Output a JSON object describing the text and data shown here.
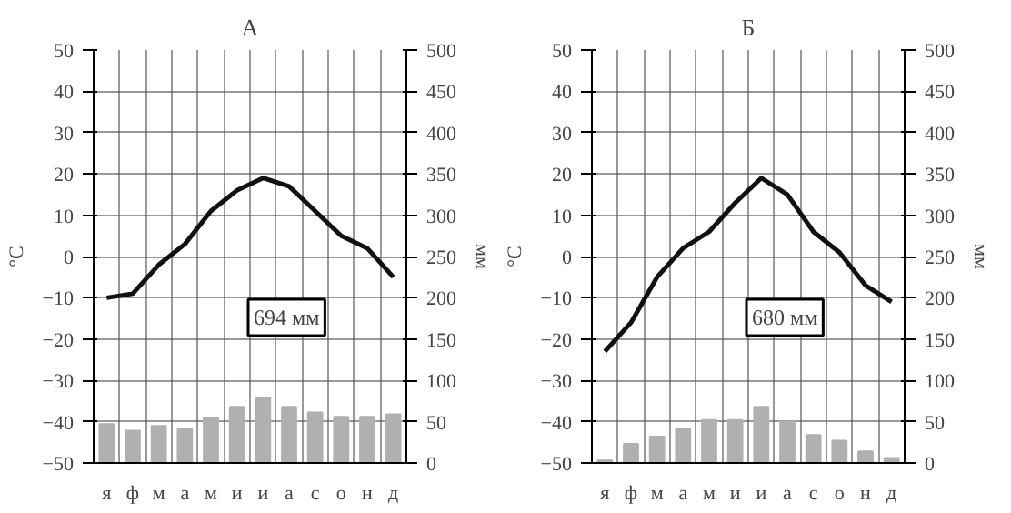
{
  "chart_data": [
    {
      "type": "bar",
      "title": "А",
      "ylabel": "°C",
      "y2label": "мм",
      "categories": [
        "я",
        "ф",
        "м",
        "а",
        "м",
        "и",
        "и",
        "а",
        "с",
        "о",
        "н",
        "д"
      ],
      "series": [
        {
          "axis": "y2",
          "color": "#b0b0b0",
          "values": [
            47,
            39,
            45,
            41,
            55,
            68,
            79,
            68,
            61,
            56,
            56,
            59
          ]
        },
        {
          "type": "line",
          "color": "#111111",
          "values": [
            -10,
            -9,
            -2,
            3,
            11,
            16,
            19,
            17,
            11,
            5,
            2,
            -5
          ]
        }
      ],
      "annotations": [
        "694 мм"
      ],
      "ylim": [
        -50,
        50
      ],
      "yticks": [
        -50,
        -40,
        -30,
        -20,
        -10,
        0,
        10,
        20,
        30,
        40,
        50
      ],
      "y2lim": [
        0,
        500
      ],
      "y2ticks": [
        0,
        50,
        100,
        150,
        200,
        250,
        300,
        350,
        400,
        450,
        500
      ],
      "grid": true
    },
    {
      "type": "bar",
      "title": "Б",
      "ylabel": "°C",
      "y2label": "мм",
      "categories": [
        "я",
        "ф",
        "м",
        "а",
        "м",
        "и",
        "и",
        "а",
        "с",
        "о",
        "н",
        "д"
      ],
      "series": [
        {
          "axis": "y2",
          "color": "#b0b0b0",
          "values": [
            3,
            23,
            32,
            41,
            52,
            52,
            68,
            50,
            34,
            27,
            14,
            6
          ]
        },
        {
          "type": "line",
          "color": "#111111",
          "values": [
            -23,
            -16,
            -5,
            2,
            6,
            13,
            19,
            15,
            6,
            1,
            -7,
            -11
          ]
        }
      ],
      "annotations": [
        "680 мм"
      ],
      "ylim": [
        -50,
        50
      ],
      "yticks": [
        -50,
        -40,
        -30,
        -20,
        -10,
        0,
        10,
        20,
        30,
        40,
        50
      ],
      "y2lim": [
        0,
        500
      ],
      "y2ticks": [
        0,
        50,
        100,
        150,
        200,
        250,
        300,
        350,
        400,
        450,
        500
      ],
      "grid": true
    }
  ]
}
